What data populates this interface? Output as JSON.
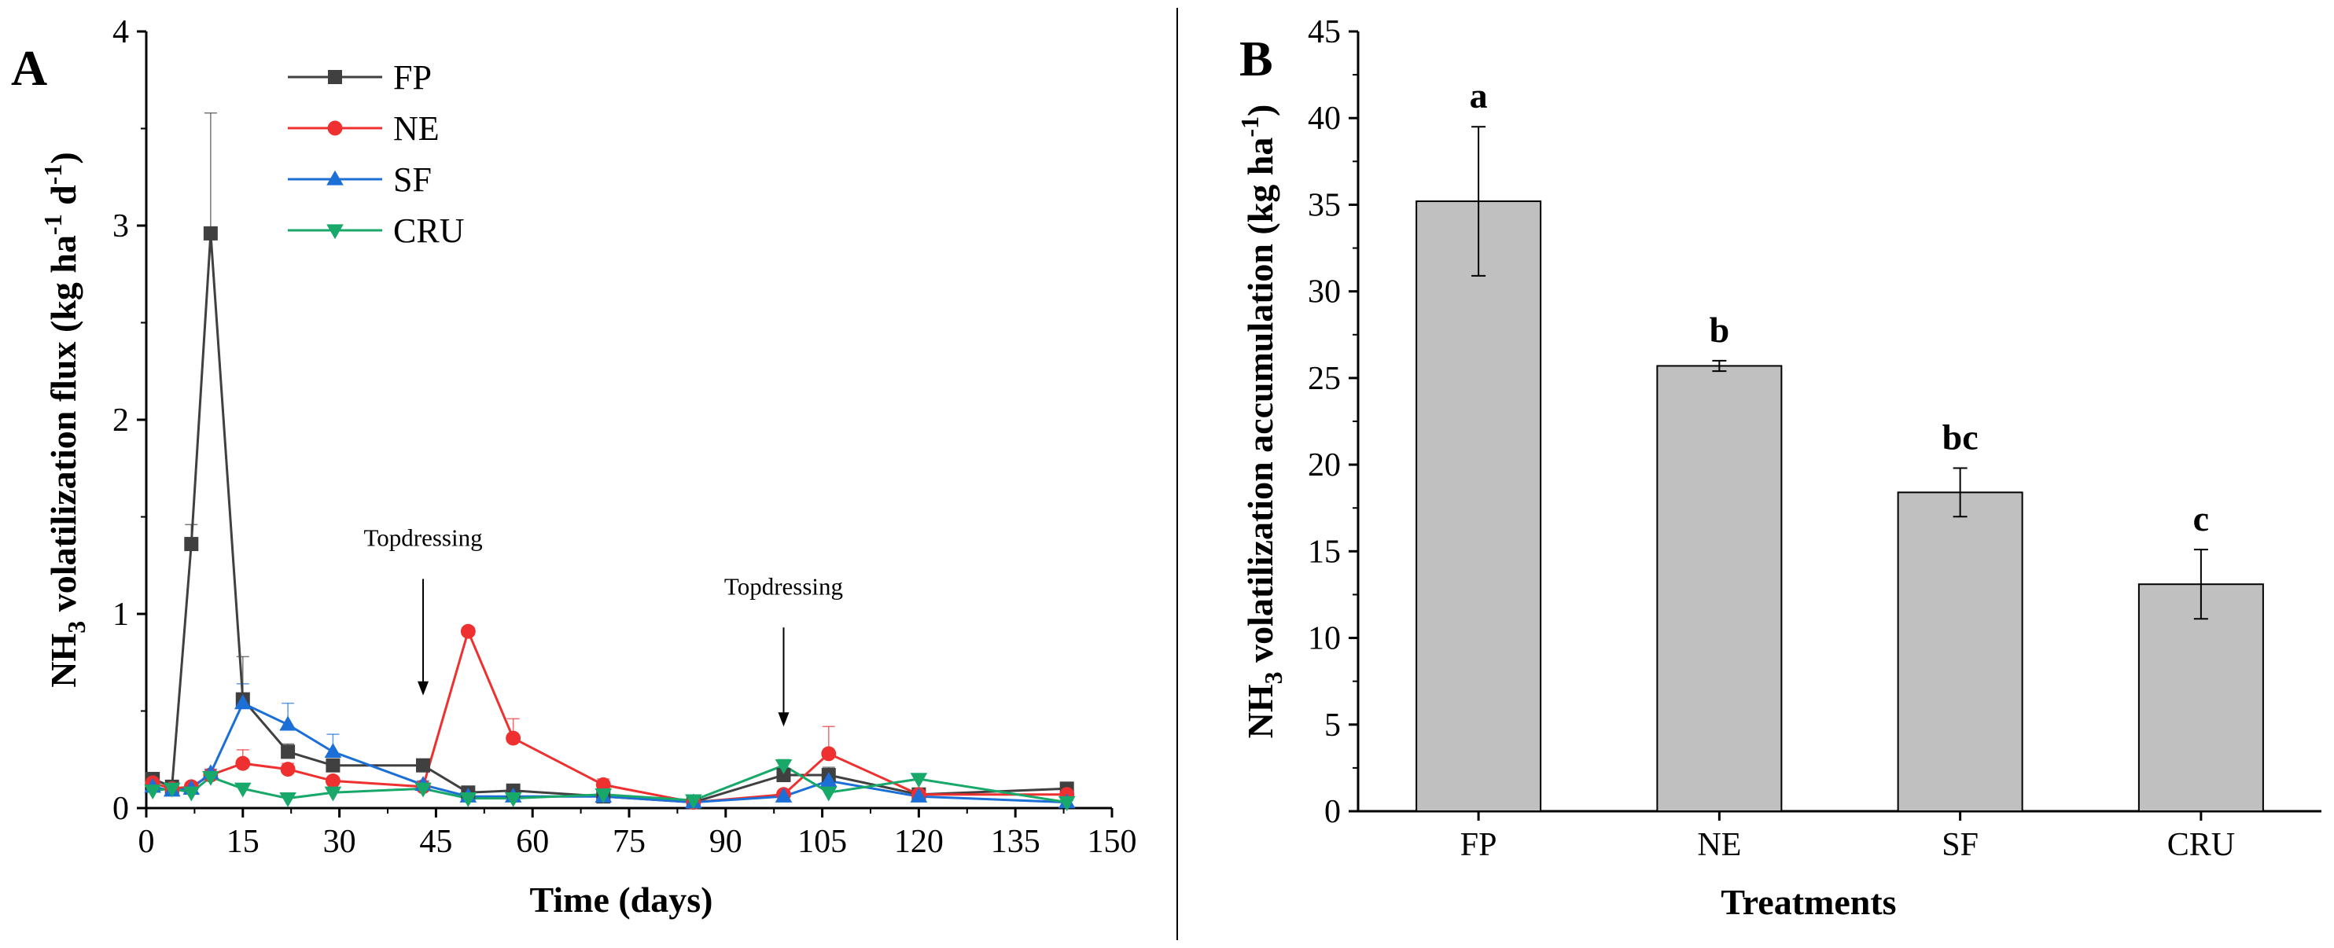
{
  "figure": {
    "panels": [
      "A",
      "B"
    ]
  },
  "chart_data": [
    {
      "panel": "A",
      "type": "line",
      "title": "",
      "xlabel": "Time (days)",
      "ylabel": "NH3 volatilization flux (kg ha-1 d-1)",
      "xlim": [
        0,
        150
      ],
      "ylim": [
        0,
        4
      ],
      "xticks": [
        "0",
        "15",
        "30",
        "45",
        "60",
        "75",
        "90",
        "105",
        "120",
        "135",
        "150"
      ],
      "yticks": [
        "0",
        "1",
        "2",
        "3",
        "4"
      ],
      "legend_position": "top-left",
      "series": [
        {
          "name": "FP",
          "color": "#404040",
          "marker": "square",
          "x": [
            1,
            4,
            7,
            10,
            15,
            22,
            29,
            43,
            50,
            57,
            71,
            85,
            99,
            106,
            120,
            143
          ],
          "y": [
            0.15,
            0.11,
            1.36,
            2.96,
            0.56,
            0.29,
            0.22,
            0.22,
            0.08,
            0.09,
            0.06,
            0.03,
            0.17,
            0.17,
            0.07,
            0.1
          ],
          "err": [
            0.02,
            0.02,
            0.1,
            0.62,
            0.22,
            0.04,
            0.03,
            0.03,
            0.01,
            0.01,
            0.01,
            0.005,
            0.03,
            0.04,
            0.01,
            0.01
          ]
        },
        {
          "name": "NE",
          "color": "#ee3030",
          "marker": "circle",
          "x": [
            1,
            4,
            7,
            10,
            15,
            22,
            29,
            43,
            50,
            57,
            71,
            85,
            99,
            106,
            120,
            143
          ],
          "y": [
            0.13,
            0.1,
            0.11,
            0.17,
            0.23,
            0.2,
            0.14,
            0.11,
            0.91,
            0.36,
            0.12,
            0.03,
            0.07,
            0.28,
            0.07,
            0.07
          ],
          "err": [
            0.02,
            0.01,
            0.02,
            0.03,
            0.07,
            0.03,
            0.02,
            0.02,
            0.02,
            0.1,
            0.03,
            0.005,
            0.02,
            0.14,
            0.02,
            0.02
          ]
        },
        {
          "name": "SF",
          "color": "#1b6fd6",
          "marker": "triangle-up",
          "x": [
            1,
            4,
            7,
            10,
            15,
            22,
            29,
            43,
            50,
            57,
            71,
            85,
            99,
            106,
            120,
            143
          ],
          "y": [
            0.11,
            0.09,
            0.1,
            0.18,
            0.54,
            0.43,
            0.29,
            0.12,
            0.06,
            0.06,
            0.06,
            0.03,
            0.06,
            0.14,
            0.06,
            0.03
          ],
          "err": [
            0.01,
            0.01,
            0.01,
            0.02,
            0.1,
            0.11,
            0.09,
            0.02,
            0.01,
            0.01,
            0.01,
            0.005,
            0.01,
            0.03,
            0.01,
            0.01
          ]
        },
        {
          "name": "CRU",
          "color": "#18a86a",
          "marker": "triangle-down",
          "x": [
            1,
            4,
            7,
            10,
            15,
            22,
            29,
            43,
            50,
            57,
            71,
            85,
            99,
            106,
            120,
            143
          ],
          "y": [
            0.09,
            0.1,
            0.08,
            0.16,
            0.1,
            0.05,
            0.08,
            0.1,
            0.05,
            0.05,
            0.07,
            0.04,
            0.22,
            0.08,
            0.15,
            0.03
          ],
          "err": [
            0.01,
            0.01,
            0.01,
            0.03,
            0.02,
            0.01,
            0.01,
            0.02,
            0.01,
            0.01,
            0.01,
            0.005,
            0.03,
            0.02,
            0.02,
            0.01
          ]
        }
      ],
      "annotations": [
        {
          "text": "Topdressing",
          "x": 43,
          "y_text": 1.35,
          "arrow_from": 1.18,
          "arrow_to": 0.58
        },
        {
          "text": "Topdressing",
          "x": 99,
          "y_text": 1.1,
          "arrow_from": 0.93,
          "arrow_to": 0.42
        }
      ]
    },
    {
      "panel": "B",
      "type": "bar",
      "title": "",
      "xlabel": "Treatments",
      "ylabel": "NH3 volatilization accumulation (kg ha-1)",
      "ylim": [
        0,
        45
      ],
      "yticks": [
        "0",
        "5",
        "10",
        "15",
        "20",
        "25",
        "30",
        "35",
        "40",
        "45"
      ],
      "categories": [
        "FP",
        "NE",
        "SF",
        "CRU"
      ],
      "values": [
        35.2,
        25.7,
        18.4,
        13.1
      ],
      "errors": [
        4.3,
        0.3,
        1.4,
        2.0
      ],
      "significance": [
        "a",
        "b",
        "bc",
        "c"
      ],
      "bar_color": "#c0c0c0"
    }
  ]
}
